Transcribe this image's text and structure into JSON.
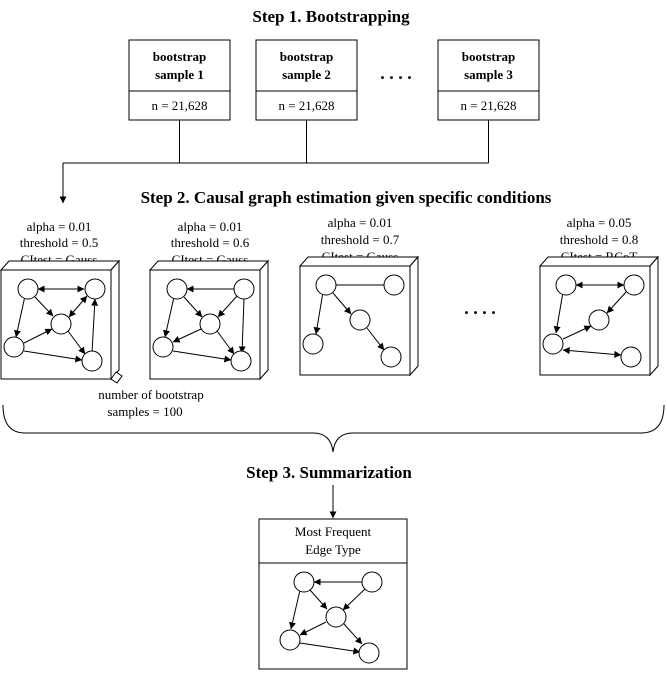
{
  "step1": {
    "title": "Step 1. Bootstrapping",
    "samples": [
      {
        "label_line1": "bootstrap",
        "label_line2": "sample 1",
        "n": "n = 21,628"
      },
      {
        "label_line1": "bootstrap",
        "label_line2": "sample 2",
        "n": "n = 21,628"
      },
      {
        "label_line1": "bootstrap",
        "label_line2": "sample 3",
        "n": "n = 21,628"
      }
    ],
    "ellipsis": ". . . ."
  },
  "step2": {
    "title": "Step 2. Causal graph estimation given specific conditions",
    "conditions": [
      {
        "alpha": "alpha = 0.01",
        "threshold": "threshold = 0.5",
        "citest": "CItest = Gauss"
      },
      {
        "alpha": "alpha = 0.01",
        "threshold": "threshold = 0.6",
        "citest": "CItest = Gauss"
      },
      {
        "alpha": "alpha = 0.01",
        "threshold": "threshold = 0.7",
        "citest": "CItest = Gauss"
      },
      {
        "alpha": "alpha = 0.05",
        "threshold": "threshold = 0.8",
        "citest": "CItest = RCoT"
      }
    ],
    "ellipsis": ". . . .",
    "note_line1": "number of bootstrap",
    "note_line2": "samples = 100"
  },
  "step3": {
    "title": "Step 3. Summarization",
    "box_line1": "Most Frequent",
    "box_line2": "Edge Type"
  }
}
